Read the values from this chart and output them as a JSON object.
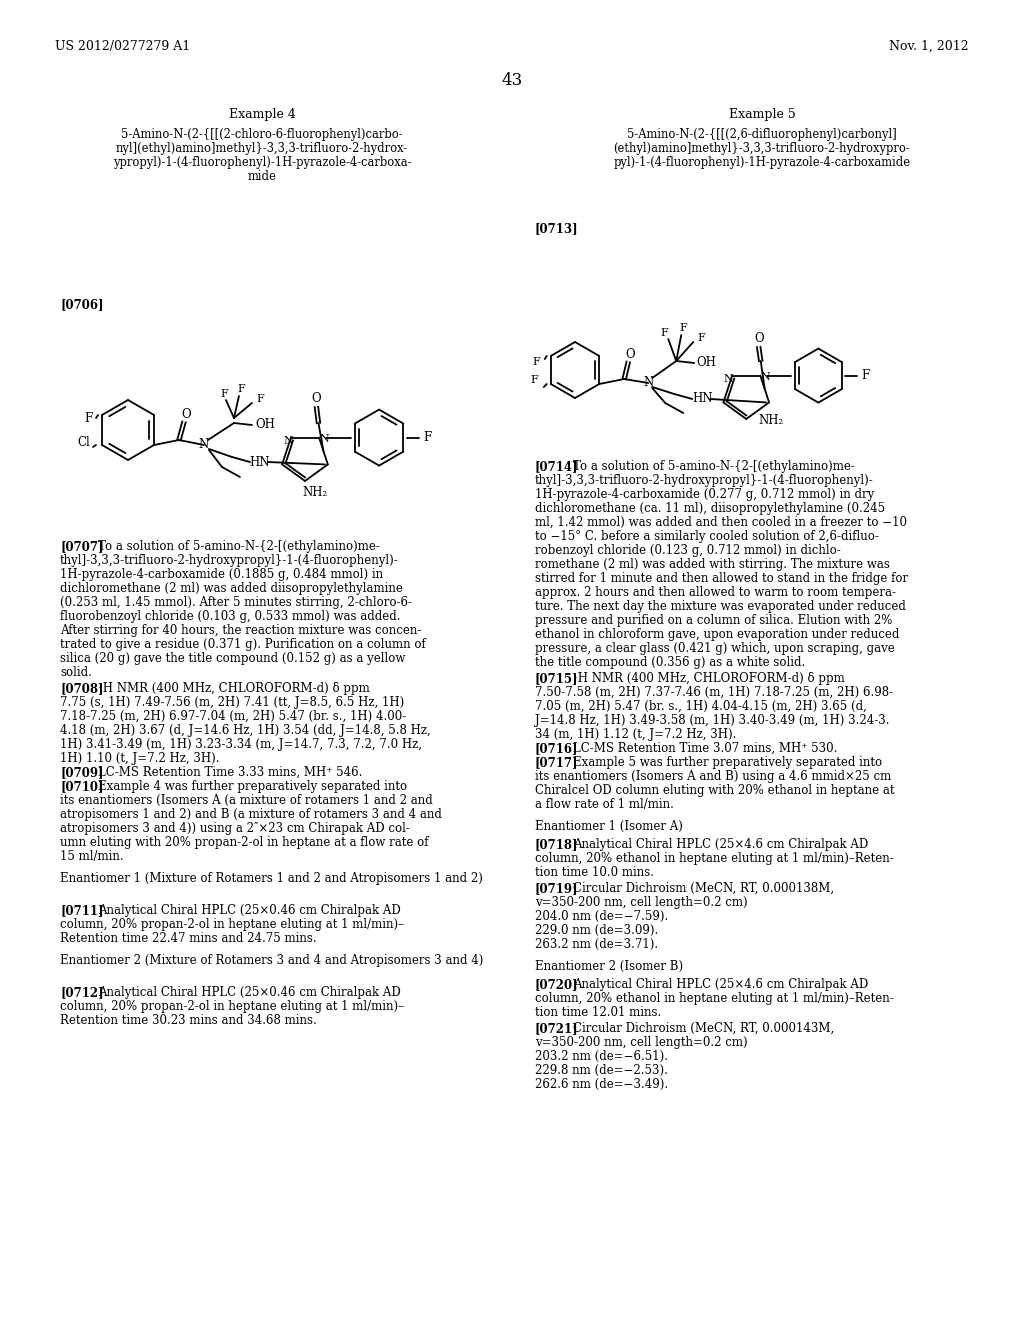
{
  "page_header_left": "US 2012/0277279 A1",
  "page_header_right": "Nov. 1, 2012",
  "page_number": "43",
  "background_color": "#ffffff",
  "example4_title": "Example 4",
  "example4_compound_line1": "5-Amino-N-(2-{[[(2-chloro-6-fluorophenyl)carbo-",
  "example4_compound_line2": "nyl](ethyl)amino]methyl}-3,3,3-trifluoro-2-hydrox-",
  "example4_compound_line3": "ypropyl)-1-(4-fluorophenyl)-1H-pyrazole-4-carboxa-",
  "example4_compound_line4": "mide",
  "example5_title": "Example 5",
  "example5_compound_line1": "5-Amino-N-(2-{[[(2,6-difluorophenyl)carbonyl]",
  "example5_compound_line2": "(ethyl)amino]methyl}-3,3,3-trifluoro-2-hydroxypro-",
  "example5_compound_line3": "pyl)-1-(4-fluorophenyl)-1H-pyrazole-4-carboxamide",
  "tag_0706": "[0706]",
  "tag_0713": "[0713]",
  "para_0707_tag": "[0707]",
  "para_0707_body": "   To a solution of 5-amino-N-{2-[(ethylamino)me-\nthyl]-3,3,3-trifluoro-2-hydroxypropyl}-1-(4-fluorophenyl)-\n1H-pyrazole-4-carboxamide (0.1885 g, 0.484 mmol) in\ndichloromethane (2 ml) was added diisopropylethylamine\n(0.253 ml, 1.45 mmol). After 5 minutes stirring, 2-chloro-6-\nfluorobenzoyl chloride (0.103 g, 0.533 mmol) was added.\nAfter stirring for 40 hours, the reaction mixture was concen-\ntrated to give a residue (0.371 g). Purification on a column of\nsilica (20 g) gave the title compound (0.152 g) as a yellow\nsolid.",
  "para_0708_tag": "[0708]",
  "para_0708_body": "   ¹H NMR (400 MHz, CHLOROFORM-d) δ ppm\n7.75 (s, 1H) 7.49-7.56 (m, 2H) 7.41 (tt, J=8.5, 6.5 Hz, 1H)\n7.18-7.25 (m, 2H) 6.97-7.04 (m, 2H) 5.47 (br. s., 1H) 4.00-\n4.18 (m, 2H) 3.67 (d, J=14.6 Hz, 1H) 3.54 (dd, J=14.8, 5.8 Hz,\n1H) 3.41-3.49 (m, 1H) 3.23-3.34 (m, J=14.7, 7.3, 7.2, 7.0 Hz,\n1H) 1.10 (t, J=7.2 Hz, 3H).",
  "para_0709": "[0709]   LC-MS Retention Time 3.33 mins, MH⁺ 546.",
  "para_0710_tag": "[0710]",
  "para_0710_body": "   Example 4 was further preparatively separated into\nits enantiomers (Isomers A (a mixture of rotamers 1 and 2 and\natropisomers 1 and 2) and B (a mixture of rotamers 3 and 4 and\natropisomers 3 and 4)) using a 2″×23 cm Chirapak AD col-\numn eluting with 20% propan-2-ol in heptane at a flow rate of\n15 ml/min.",
  "enantiomer1_label_left": "Enantiomer 1 (Mixture of Rotamers 1 and 2 and Atropisomers 1 and 2)",
  "para_0711_tag": "[0711]",
  "para_0711_body": "   Analytical Chiral HPLC (25×0.46 cm Chiralpak AD\ncolumn, 20% propan-2-ol in heptane eluting at 1 ml/min)–\nRetention time 22.47 mins and 24.75 mins.",
  "enantiomer2_label_left": "Enantiomer 2 (Mixture of Rotamers 3 and 4 and Atropisomers 3 and 4)",
  "para_0712_tag": "[0712]",
  "para_0712_body": "   Analytical Chiral HPLC (25×0.46 cm Chiralpak AD\ncolumn, 20% propan-2-ol in heptane eluting at 1 ml/min)–\nRetention time 30.23 mins and 34.68 mins.",
  "para_0714_tag": "[0714]",
  "para_0714_body": "   To a solution of 5-amino-N-{2-[(ethylamino)me-\nthyl]-3,3,3-trifluoro-2-hydroxypropyl}-1-(4-fluorophenyl)-\n1H-pyrazole-4-carboxamide (0.277 g, 0.712 mmol) in dry\ndichloromethane (ca. 11 ml), diisopropylethylamine (0.245\nml, 1.42 mmol) was added and then cooled in a freezer to −10\nto −15° C. before a similarly cooled solution of 2,6-difluo-\nrobenzoyl chloride (0.123 g, 0.712 mmol) in dichlo-\nromethane (2 ml) was added with stirring. The mixture was\nstirred for 1 minute and then allowed to stand in the fridge for\napprox. 2 hours and then allowed to warm to room tempera-\nture. The next day the mixture was evaporated under reduced\npressure and purified on a column of silica. Elution with 2%\nethanol in chloroform gave, upon evaporation under reduced\npressure, a clear glass (0.421 g) which, upon scraping, gave\nthe title compound (0.356 g) as a white solid.",
  "para_0715_tag": "[0715]",
  "para_0715_body": "   ¹H NMR (400 MHz, CHLOROFORM-d) δ ppm\n7.50-7.58 (m, 2H) 7.37-7.46 (m, 1H) 7.18-7.25 (m, 2H) 6.98-\n7.05 (m, 2H) 5.47 (br. s., 1H) 4.04-4.15 (m, 2H) 3.65 (d,\nJ=14.8 Hz, 1H) 3.49-3.58 (m, 1H) 3.40-3.49 (m, 1H) 3.24-3.\n34 (m, 1H) 1.12 (t, J=7.2 Hz, 3H).",
  "para_0716": "[0716]   LC-MS Retention Time 3.07 mins, MH⁺ 530.",
  "para_0717_tag": "[0717]",
  "para_0717_body": "   Example 5 was further preparatively separated into\nits enantiomers (Isomers A and B) using a 4.6 mmid×25 cm\nChiralcel OD column eluting with 20% ethanol in heptane at\na flow rate of 1 ml/min.",
  "enantiomer1_label_right": "Enantiomer 1 (Isomer A)",
  "para_0718_tag": "[0718]",
  "para_0718_body": "   Analytical Chiral HPLC (25×4.6 cm Chiralpak AD\ncolumn, 20% ethanol in heptane eluting at 1 ml/min)–Reten-\ntion time 10.0 mins.",
  "para_0719_tag": "[0719]",
  "para_0719_body": "   Circular Dichroism (MeCN, RT, 0.000138M,\nv=350-200 nm, cell length=0.2 cm)\n204.0 nm (de=−7.59).\n229.0 nm (de=3.09).\n263.2 nm (de=3.71).",
  "enantiomer2_label_right": "Enantiomer 2 (Isomer B)",
  "para_0720_tag": "[0720]",
  "para_0720_body": "   Analytical Chiral HPLC (25×4.6 cm Chiralpak AD\ncolumn, 20% ethanol in heptane eluting at 1 ml/min)–Reten-\ntion time 12.01 mins.",
  "para_0721_tag": "[0721]",
  "para_0721_body": "   Circular Dichroism (MeCN, RT, 0.000143M,\nv=350-200 nm, cell length=0.2 cm)\n203.2 nm (de=−6.51).\n229.8 nm (de=−2.53).\n262.6 nm (de=−3.49)."
}
